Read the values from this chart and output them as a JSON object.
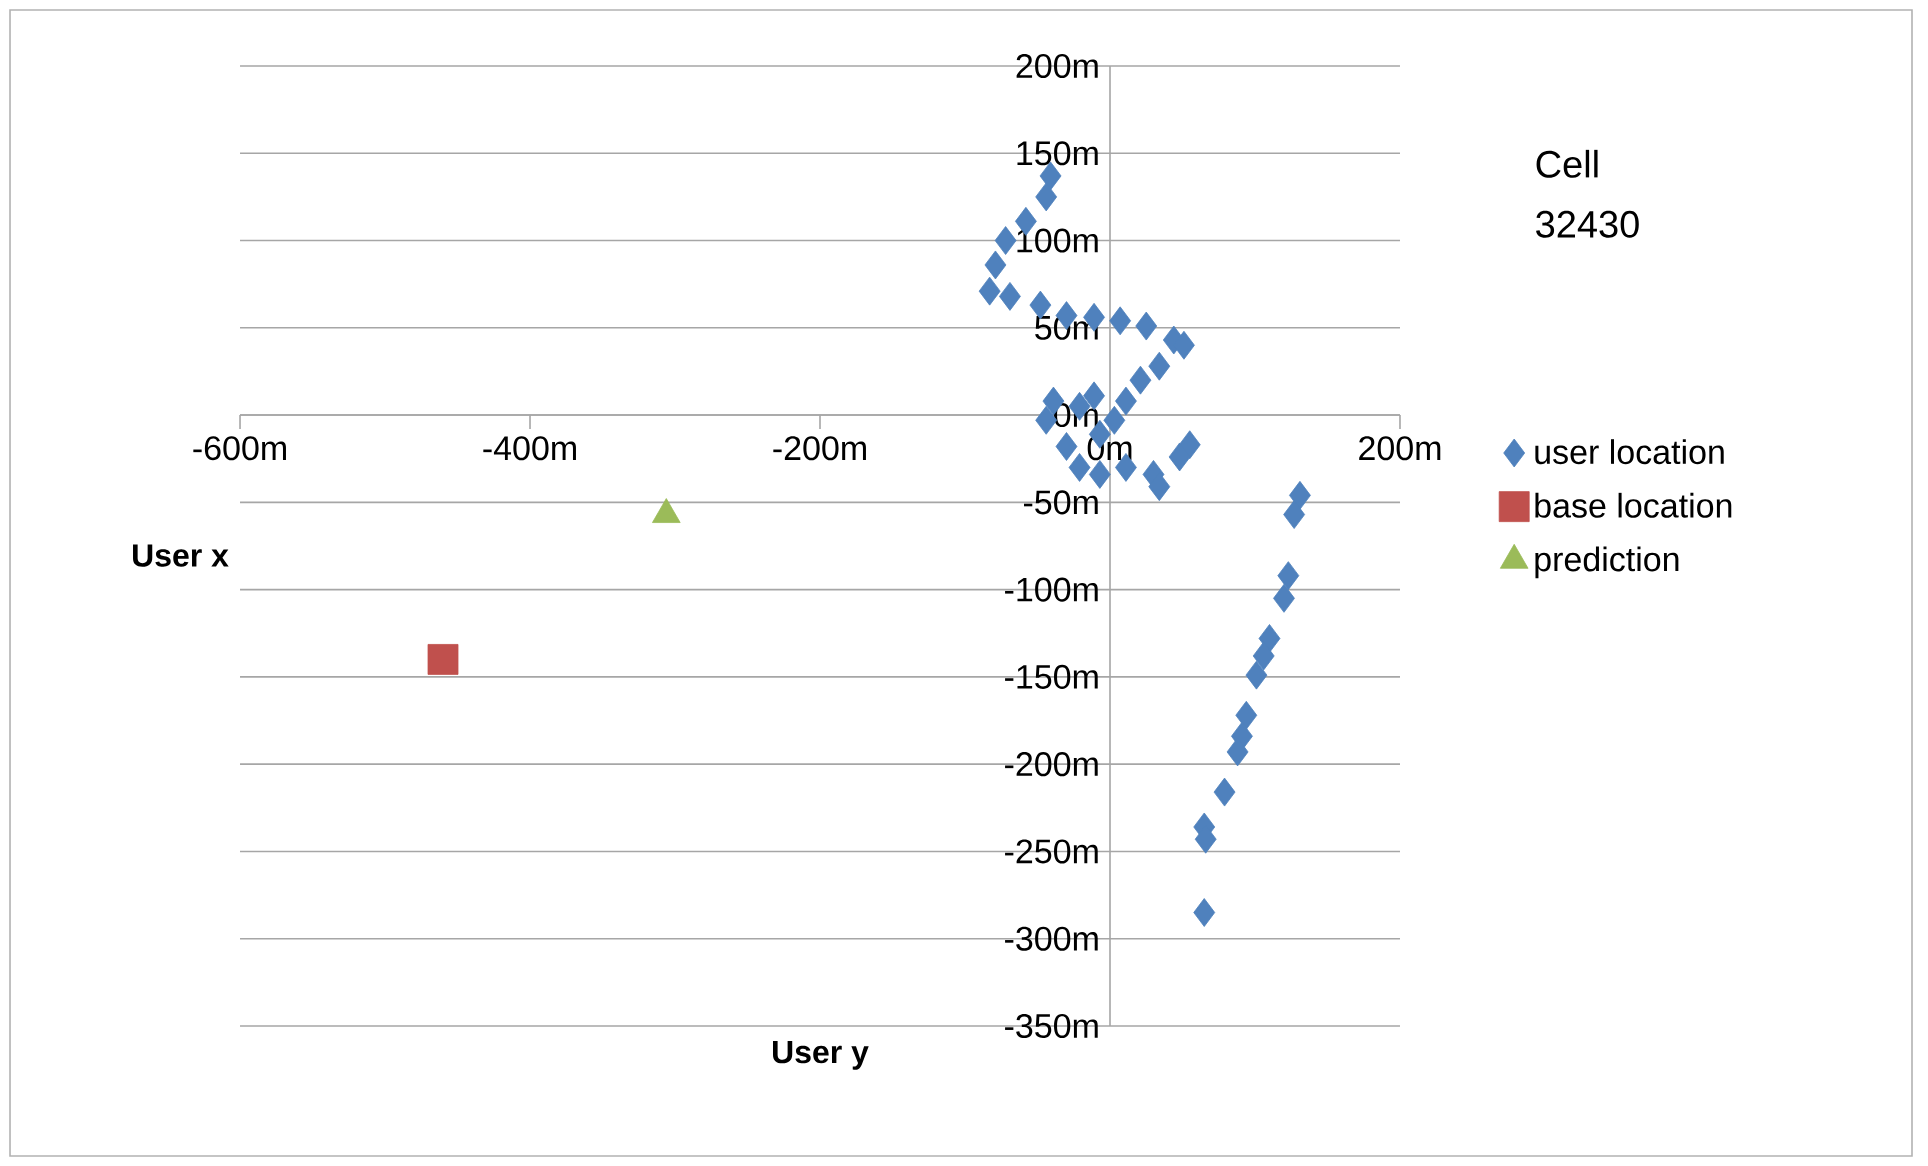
{
  "chart_data": {
    "type": "scatter",
    "xlabel": "User y",
    "ylabel": "User x",
    "annotations": [
      "Cell 32430"
    ],
    "xlim": [
      -600,
      200
    ],
    "ylim": [
      -350,
      200
    ],
    "xticks": [
      {
        "value": -600,
        "label": "-600m"
      },
      {
        "value": -400,
        "label": "-400m"
      },
      {
        "value": -200,
        "label": "-200m"
      },
      {
        "value": 0,
        "label": "0m"
      },
      {
        "value": 200,
        "label": "200m"
      }
    ],
    "yticks": [
      {
        "value": -350,
        "label": "-350m"
      },
      {
        "value": -300,
        "label": "-300m"
      },
      {
        "value": -250,
        "label": "-250m"
      },
      {
        "value": -200,
        "label": "-200m"
      },
      {
        "value": -150,
        "label": "-150m"
      },
      {
        "value": -100,
        "label": "-100m"
      },
      {
        "value": -50,
        "label": "-50m"
      },
      {
        "value": 0,
        "label": "0m"
      },
      {
        "value": 50,
        "label": "50m"
      },
      {
        "value": 100,
        "label": "100m"
      },
      {
        "value": 150,
        "label": "150m"
      },
      {
        "value": 200,
        "label": "200m"
      }
    ],
    "grid": "y",
    "legend": "right",
    "series": [
      {
        "name": "user location",
        "color": "#4f81bd",
        "marker": "diamond",
        "x": [
          -41,
          -44,
          -58,
          -72,
          -79,
          -83,
          -69,
          -48,
          -30,
          -11,
          7,
          25,
          44,
          51,
          34,
          21,
          11,
          3,
          -7,
          -39,
          -44,
          -30,
          -21,
          -7,
          11,
          30,
          34,
          55,
          48,
          -21,
          -11,
          131,
          127,
          123,
          120,
          110,
          106,
          101,
          94,
          91,
          88,
          80,
          79,
          65,
          66,
          65
        ],
        "values": [
          137,
          125,
          111,
          100,
          86,
          71,
          68,
          63,
          57,
          56,
          54,
          51,
          43,
          40,
          28,
          20,
          8,
          -3,
          -11,
          8,
          -3,
          -18,
          -30,
          -34,
          -30,
          -34,
          -41,
          -17,
          -24,
          5,
          11,
          -46,
          -57,
          -92,
          -105,
          -128,
          -138,
          -149,
          -172,
          -184,
          -193,
          null,
          -216,
          -236,
          -243,
          -285
        ]
      },
      {
        "name": "base location",
        "color": "#c0504d",
        "marker": "square",
        "x": [
          -460
        ],
        "values": [
          -140
        ]
      },
      {
        "name": "prediction",
        "color": "#9bbb59",
        "marker": "triangle",
        "x": [
          -306
        ],
        "values": [
          -57
        ]
      }
    ]
  }
}
